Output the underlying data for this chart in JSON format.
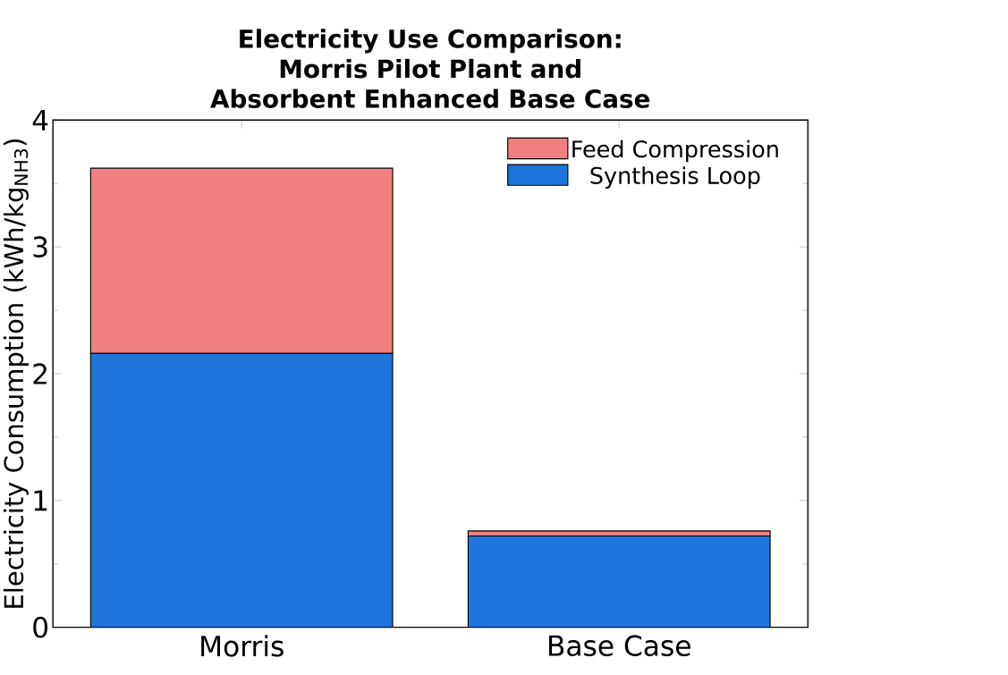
{
  "chart_data": {
    "type": "bar",
    "title": "Electricity Use Comparison: Morris Pilot Plant and Absorbent Enhanced Base Case",
    "ylabel": "Electricity Consumption (kWh/kg$_{NH3}$)",
    "categories": [
      "Morris",
      "Base Case"
    ],
    "stacked": true,
    "series": [
      {
        "name": "Synthesis Loop",
        "color": "#1f74dc",
        "values": [
          2.16,
          0.72
        ]
      },
      {
        "name": "Feed Compression",
        "color": "#f08080",
        "values": [
          1.46,
          0.04
        ]
      }
    ],
    "ylim": [
      0,
      4
    ],
    "yticks": [
      0,
      1,
      2,
      3,
      4
    ],
    "grid": false,
    "legend": "top right"
  }
}
